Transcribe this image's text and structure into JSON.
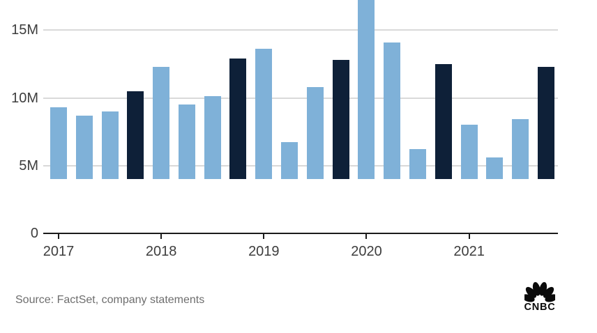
{
  "chart_data": {
    "type": "bar",
    "title": "",
    "unit": "millions",
    "y_tick_labels": [
      "15M",
      "10M",
      "5M",
      "0"
    ],
    "y_tick_values": [
      15,
      10,
      5,
      0
    ],
    "gridline_values": [
      5,
      10,
      15
    ],
    "ylim": [
      0,
      16.25
    ],
    "x_tick_labels": [
      "2017",
      "2018",
      "2019",
      "2020",
      "2021"
    ],
    "bars_per_year": 4,
    "values": [
      5.3,
      4.7,
      5.0,
      6.5,
      8.3,
      5.5,
      6.1,
      8.9,
      9.6,
      2.7,
      6.8,
      8.8,
      15.8,
      10.1,
      2.2,
      8.5,
      4.0,
      1.6,
      4.4,
      8.3
    ],
    "highlighted_bar_indices": [
      3,
      7,
      11,
      15,
      19
    ],
    "year_start_bar_indices": [
      0,
      4,
      8,
      12,
      16
    ],
    "legend_position": "none",
    "colors": {
      "bar_light": "#7fb1d8",
      "bar_dark": "#0e2038",
      "gridline": "#d9d9d9",
      "axis": "#1b1b1b",
      "axis_text": "#3d3d3d"
    }
  },
  "footer": {
    "source_text": "Source: FactSet, company statements",
    "brand": "CNBC"
  }
}
